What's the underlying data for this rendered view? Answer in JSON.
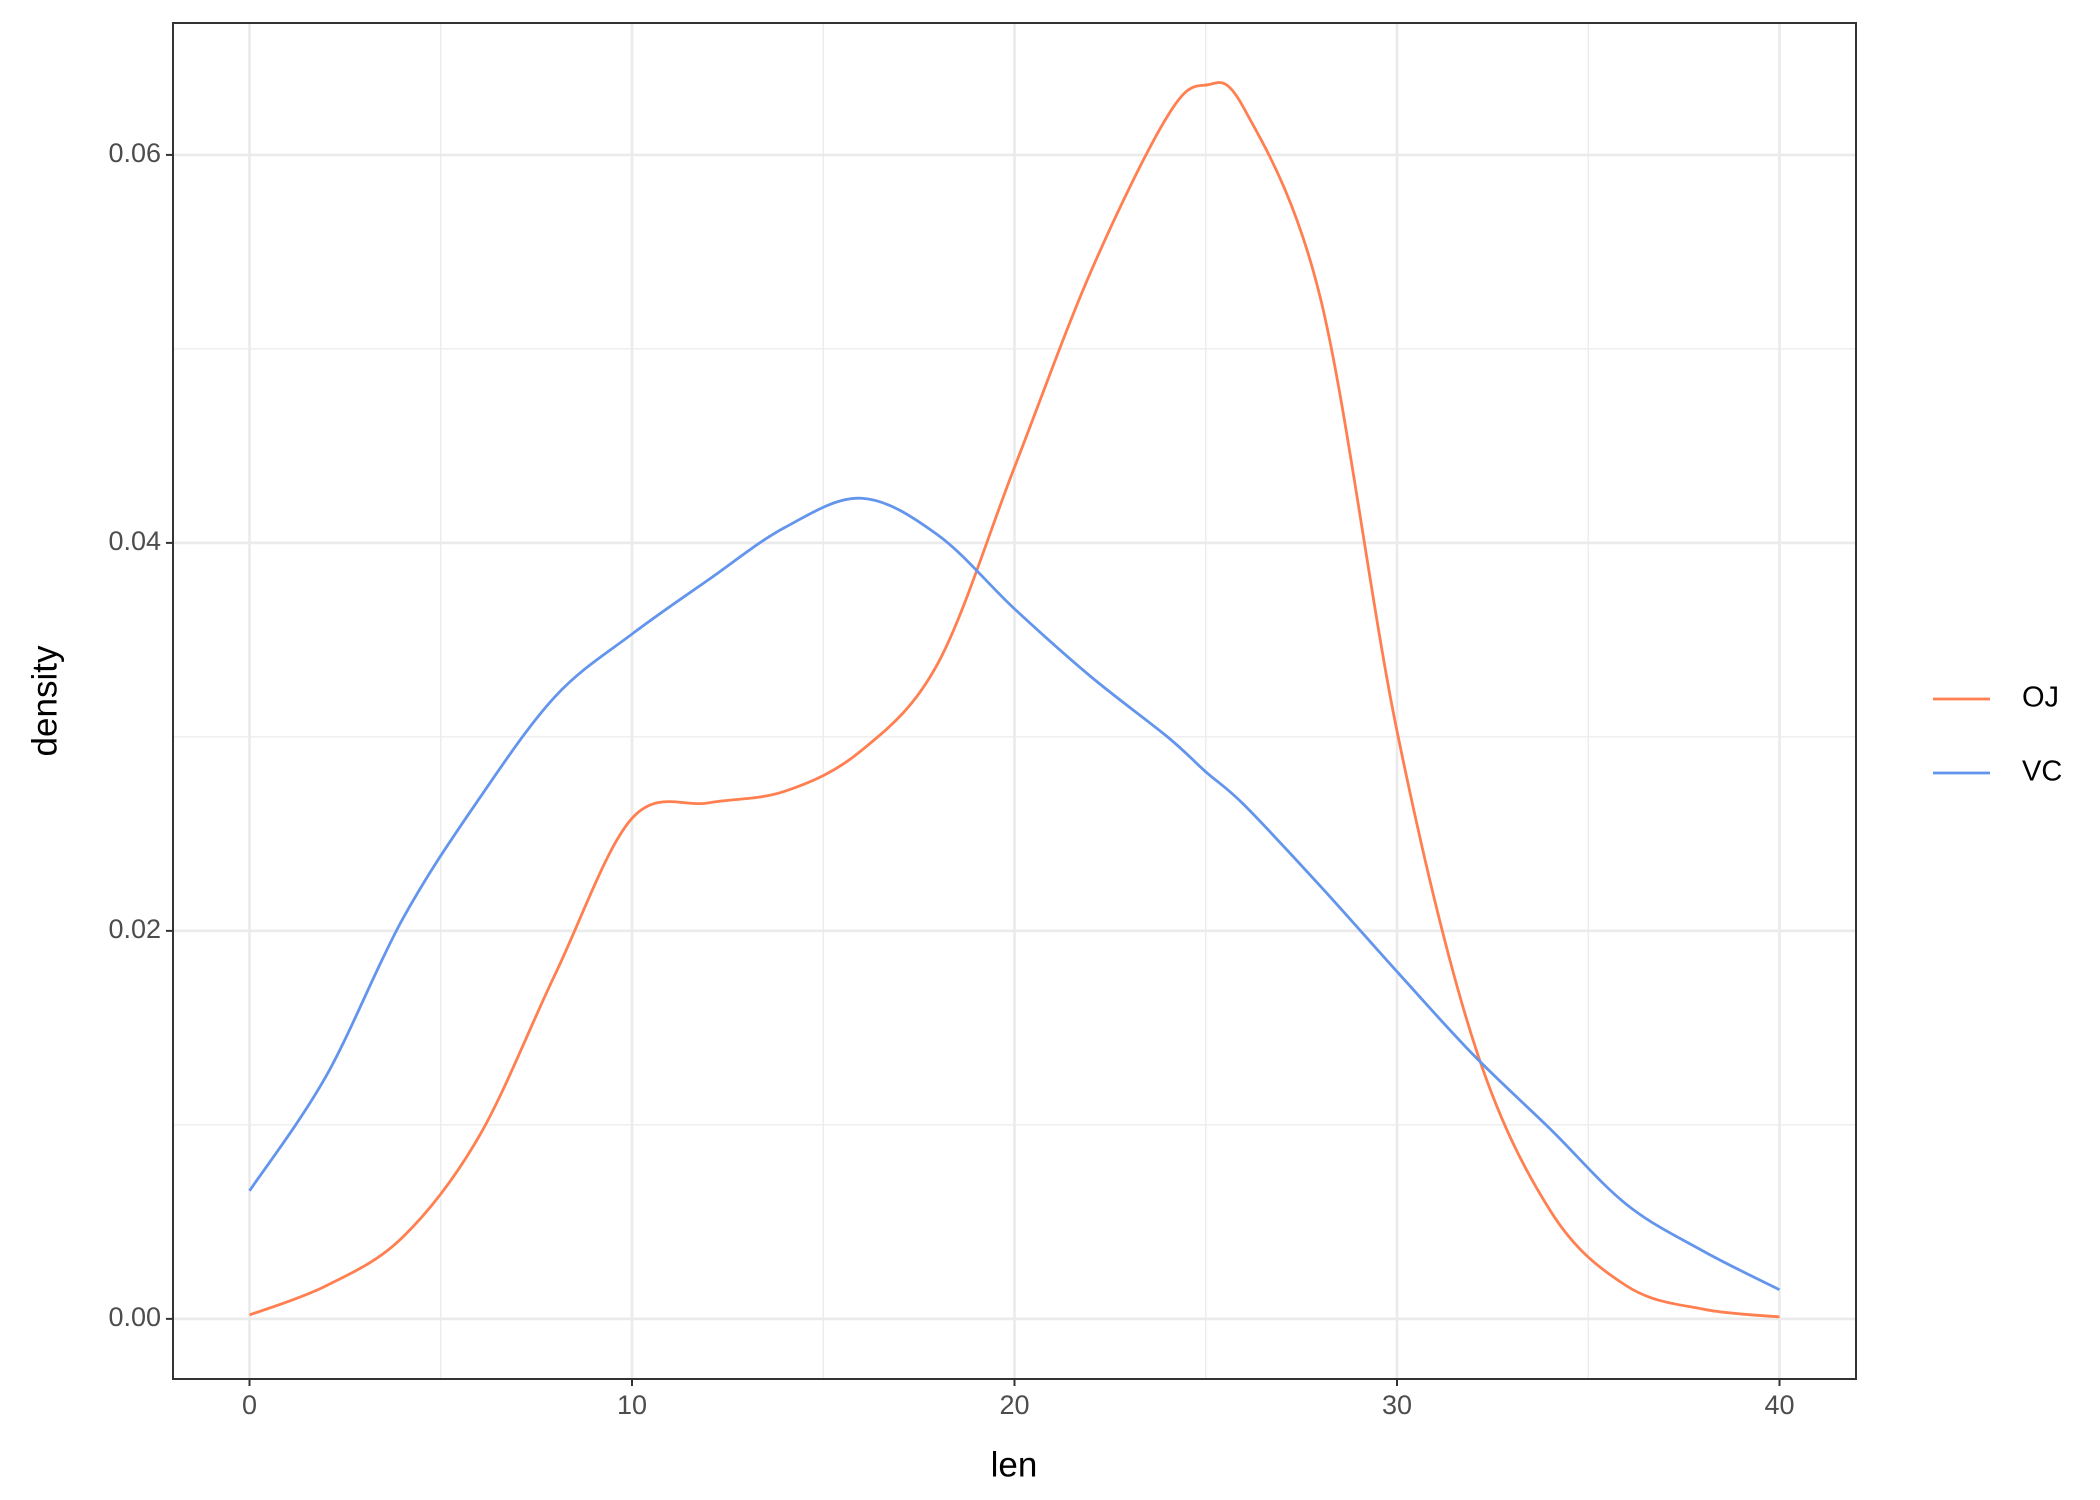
{
  "chart_data": {
    "type": "line",
    "x_label": "len",
    "y_label": "density",
    "x": [
      0,
      2,
      4,
      6,
      8,
      10,
      12,
      14,
      16,
      18,
      20,
      22,
      24,
      25,
      26,
      28,
      30,
      32,
      34,
      36,
      38,
      40
    ],
    "series": [
      {
        "name": "OJ",
        "color": "coral",
        "values": [
          0.0002,
          0.0017,
          0.0042,
          0.0094,
          0.0178,
          0.0258,
          0.0266,
          0.0272,
          0.0293,
          0.0338,
          0.0439,
          0.054,
          0.062,
          0.0636,
          0.0624,
          0.0526,
          0.0303,
          0.0143,
          0.0056,
          0.0017,
          0.0005,
          0.0001
        ]
      },
      {
        "name": "VC",
        "color": "cornflowerblue",
        "values": [
          0.0066,
          0.0125,
          0.0206,
          0.0268,
          0.0321,
          0.0353,
          0.0381,
          0.0408,
          0.0423,
          0.0404,
          0.0366,
          0.0331,
          0.03,
          0.0282,
          0.0265,
          0.0223,
          0.0179,
          0.0136,
          0.0098,
          0.0059,
          0.0035,
          0.0015
        ]
      }
    ],
    "xlim": [
      -2,
      42
    ],
    "ylim": [
      -0.0031,
      0.0668
    ],
    "xticks": [
      0,
      10,
      20,
      30,
      40
    ],
    "yticks": [
      {
        "value": 0,
        "label": "0.00"
      },
      0.02,
      0.04,
      0.06
    ],
    "x_minor_ticks": [
      5,
      15,
      25,
      35
    ],
    "y_minor_ticks": [
      0.01,
      0.03,
      0.05
    ],
    "grid": true,
    "legend": "right"
  }
}
